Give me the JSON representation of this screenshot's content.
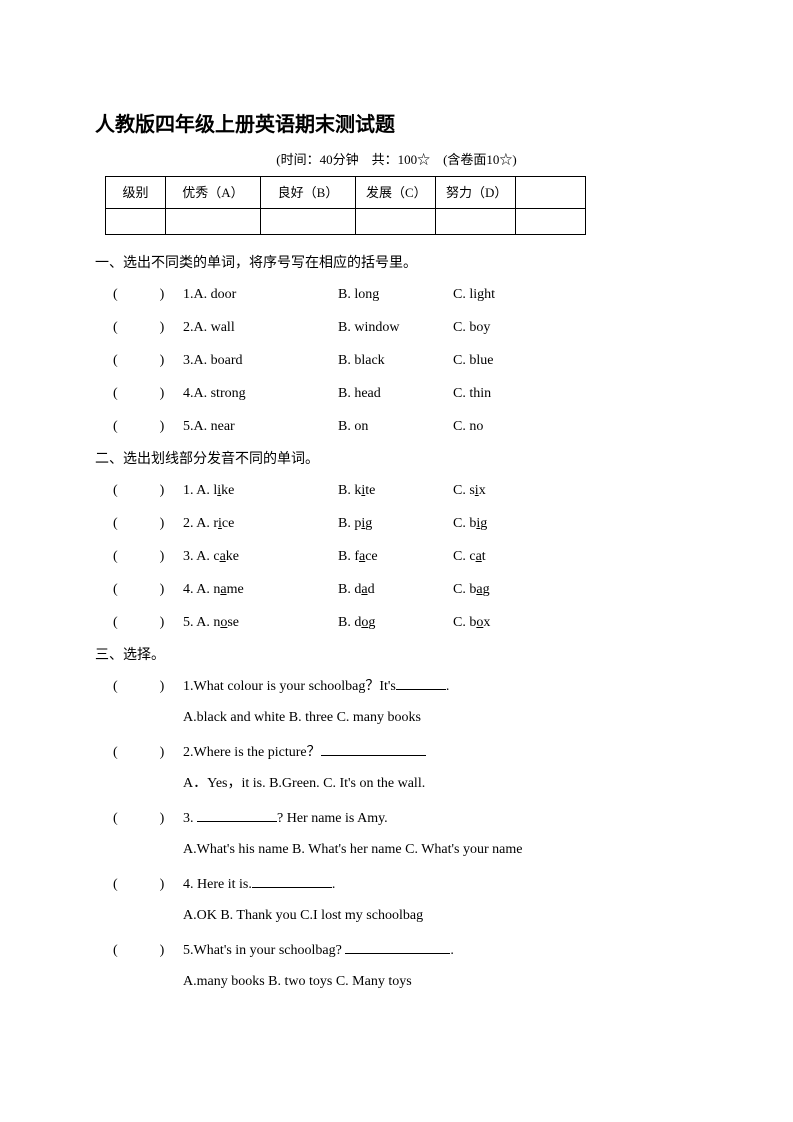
{
  "title": "人教版四年级上册英语期末测试题",
  "subtitle": "(时间：40分钟　共：100☆　(含卷面10☆)",
  "gradeTable": {
    "label": "级别",
    "colA": "优秀（A）",
    "colB": "良好（B）",
    "colC": "发展（C）",
    "colD": "努力（D）"
  },
  "section1": {
    "heading": "一、选出不同类的单词，将序号写在相应的括号里。",
    "questions": [
      {
        "num": "1.",
        "A": "A. door",
        "B": "B. long",
        "C": "C. light"
      },
      {
        "num": "2.",
        "A": "A. wall",
        "B": "B. window",
        "C": "C. boy"
      },
      {
        "num": "3.",
        "A": "A. board",
        "B": "B. black",
        "C": "C. blue"
      },
      {
        "num": "4.",
        "A": "A. strong",
        "B": "B. head",
        "C": "C. thin"
      },
      {
        "num": "5.",
        "A": "A. near",
        "B": "B. on",
        "C": "C. no"
      }
    ]
  },
  "section2": {
    "heading": "二、选出划线部分发音不同的单词。",
    "questions": [
      {
        "num": "1.",
        "A_pre": "A. l",
        "A_u": "i",
        "A_post": "ke",
        "B_pre": "B. k",
        "B_u": "i",
        "B_post": "te",
        "C_pre": "C. s",
        "C_u": "i",
        "C_post": "x"
      },
      {
        "num": "2.",
        "A_pre": "A. r",
        "A_u": "i",
        "A_post": "ce",
        "B_pre": "B. p",
        "B_u": "i",
        "B_post": "g",
        "C_pre": "C. b",
        "C_u": "i",
        "C_post": "g"
      },
      {
        "num": "3.",
        "A_pre": "A. c",
        "A_u": "a",
        "A_post": "ke",
        "B_pre": "B. f",
        "B_u": "a",
        "B_post": "ce",
        "C_pre": "C. c",
        "C_u": "a",
        "C_post": "t"
      },
      {
        "num": "4.",
        "A_pre": "A. n",
        "A_u": "a",
        "A_post": "me",
        "B_pre": "B. d",
        "B_u": "a",
        "B_post": "d",
        "C_pre": "C. b",
        "C_u": "a",
        "C_post": "g"
      },
      {
        "num": "5.",
        "A_pre": "A. n",
        "A_u": "o",
        "A_post": "se",
        "B_pre": "B. d",
        "B_u": "o",
        "B_post": "g",
        "C_pre": "C. b",
        "C_u": "o",
        "C_post": "x"
      }
    ]
  },
  "section3": {
    "heading": "三、选择。",
    "q1": {
      "stem_pre": "1.What colour is your schoolbag？It's",
      "stem_post": ".",
      "options": "A.black and white   B. three   C. many books"
    },
    "q2": {
      "stem_pre": "2.Where is the picture？",
      "options": "A．Yes，it is.   B.Green.  C. It's on the wall."
    },
    "q3": {
      "stem_pre": "3. ",
      "stem_post": "? Her name is Amy.",
      "options": "A.What's his name   B. What's her name    C. What's your name"
    },
    "q4": {
      "stem_pre": "4. Here it is.",
      "stem_post": ".",
      "options": "A.OK   B. Thank you   C.I lost my schoolbag"
    },
    "q5": {
      "stem_pre": "5.What's in your schoolbag? ",
      "stem_post": ".",
      "options": "A.many books   B. two toys   C. Many toys"
    }
  },
  "paren": "(　　　)"
}
